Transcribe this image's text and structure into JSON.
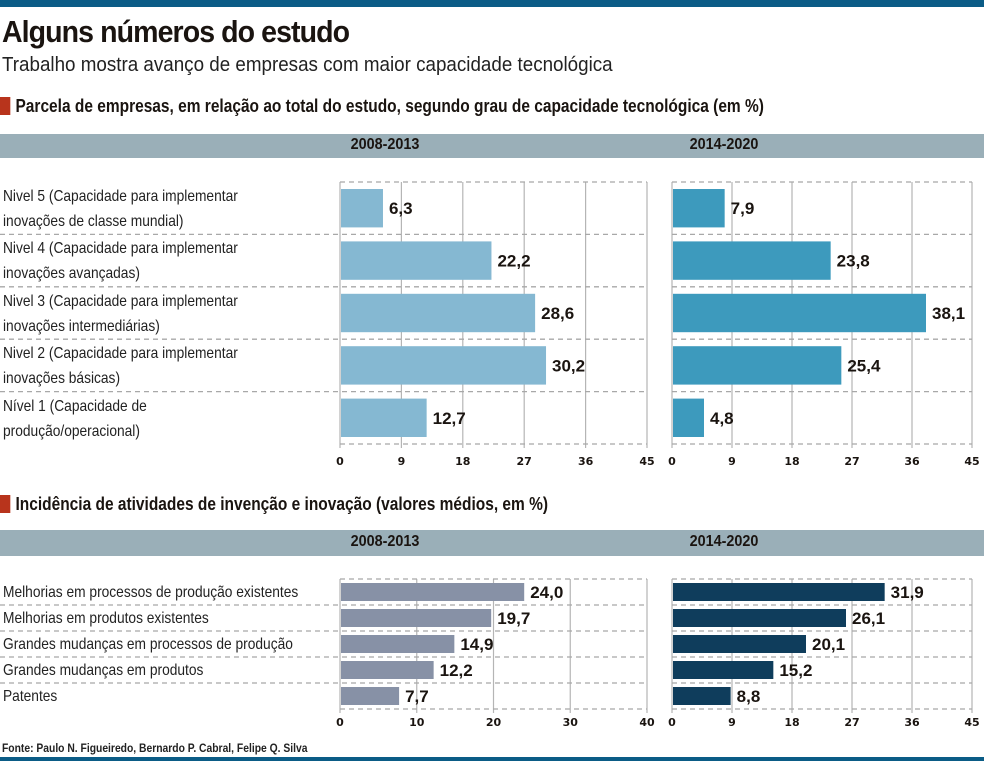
{
  "header": {
    "title": "Alguns números do estudo",
    "subtitle": "Trabalho mostra avanço de empresas com maior capacidade tecnológica"
  },
  "colors": {
    "top_bar": "#0b5c86",
    "band": "#9aafb8",
    "section_marker": "#b8341c",
    "chart1_2008": "#85b8d2",
    "chart1_2014": "#3d9abd",
    "chart2_2008": "#8791a6",
    "chart2_2014": "#0f3d5c"
  },
  "sections": [
    {
      "heading": "Parcela de empresas, em relação ao total do estudo, segundo grau de capacidade tecnológica (em %)",
      "period_labels": [
        "2008-2013",
        "2014-2020"
      ],
      "categories": [
        [
          "Nivel  5 (Capacidade para  implementar",
          "inovações de classe mundial)"
        ],
        [
          "Nivel  4 (Capacidade para implementar",
          "inovações avançadas)"
        ],
        [
          "Nivel  3 (Capacidade para implementar",
          "inovações intermediárias)"
        ],
        [
          "Nivel  2 (Capacidade para implementar",
          "inovações básicas)"
        ],
        [
          "Nível  1 (Capacidade  de",
          "produção/operacional)"
        ]
      ]
    },
    {
      "heading": "Incidência de atividades de invenção e inovação (valores médios, em %)",
      "period_labels": [
        "2008-2013",
        "2014-2020"
      ],
      "categories": [
        [
          "Melhorias em processos de produção existentes"
        ],
        [
          "Melhorias em produtos existentes"
        ],
        [
          "Grandes mudanças em processos de produção"
        ],
        [
          "Grandes mudanças em produtos"
        ],
        [
          "Patentes"
        ]
      ]
    }
  ],
  "source": "Fonte: Paulo N. Figueiredo, Bernardo P. Cabral, Felipe Q. Silva",
  "chart_data": [
    {
      "type": "bar",
      "orientation": "horizontal",
      "title": "Parcela de empresas, em relação ao total do estudo, segundo grau de capacidade tecnológica (em %) — 2008-2013",
      "categories": [
        "Nível 5",
        "Nível 4",
        "Nível 3",
        "Nível 2",
        "Nível 1"
      ],
      "values": [
        6.3,
        22.2,
        28.6,
        30.2,
        12.7
      ],
      "labels": [
        "6,3",
        "22,2",
        "28,6",
        "30,2",
        "12,7"
      ],
      "xlim": [
        0,
        45
      ],
      "ticks": [
        0,
        9,
        18,
        27,
        36,
        45
      ],
      "grid": true
    },
    {
      "type": "bar",
      "orientation": "horizontal",
      "title": "Parcela de empresas, em relação ao total do estudo, segundo grau de capacidade tecnológica (em %) — 2014-2020",
      "categories": [
        "Nível 5",
        "Nível 4",
        "Nível 3",
        "Nível 2",
        "Nível 1"
      ],
      "values": [
        7.9,
        23.8,
        38.1,
        25.4,
        4.8
      ],
      "labels": [
        "7,9",
        "23,8",
        "38,1",
        "25,4",
        "4,8"
      ],
      "xlim": [
        0,
        45
      ],
      "ticks": [
        0,
        9,
        18,
        27,
        36,
        45
      ],
      "grid": true
    },
    {
      "type": "bar",
      "orientation": "horizontal",
      "title": "Incidência de atividades de invenção e inovação (valores médios, em %) — 2008-2013",
      "categories": [
        "Melhorias em processos de produção existentes",
        "Melhorias em produtos existentes",
        "Grandes mudanças em processos de produção",
        "Grandes mudanças em produtos",
        "Patentes"
      ],
      "values": [
        24.0,
        19.7,
        14.9,
        12.2,
        7.7
      ],
      "labels": [
        "24,0",
        "19,7",
        "14,9",
        "12,2",
        "7,7"
      ],
      "xlim": [
        0,
        40
      ],
      "ticks": [
        0,
        10,
        20,
        30,
        40
      ],
      "grid": true
    },
    {
      "type": "bar",
      "orientation": "horizontal",
      "title": "Incidência de atividades de invenção e inovação (valores médios, em %) — 2014-2020",
      "categories": [
        "Melhorias em processos de produção existentes",
        "Melhorias em produtos existentes",
        "Grandes mudanças em processos de produção",
        "Grandes mudanças em produtos",
        "Patentes"
      ],
      "values": [
        31.9,
        26.1,
        20.1,
        15.2,
        8.8
      ],
      "labels": [
        "31,9",
        "26,1",
        "20,1",
        "15,2",
        "8,8"
      ],
      "xlim": [
        0,
        45
      ],
      "ticks": [
        0,
        9,
        18,
        27,
        36,
        45
      ],
      "grid": true
    }
  ]
}
